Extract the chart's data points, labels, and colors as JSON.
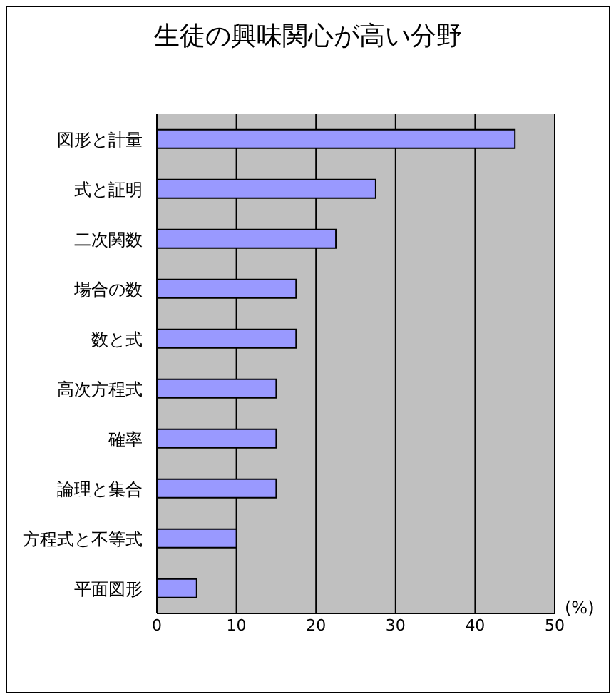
{
  "chart_data": {
    "type": "bar",
    "title": "生徒の興味関心が高い分野",
    "xlabel": "(%)",
    "orientation": "horizontal",
    "categories": [
      "図形と計量",
      "式と証明",
      "二次関数",
      "場合の数",
      "数と式",
      "高次方程式",
      "確率",
      "論理と集合",
      "方程式と不等式",
      "平面図形"
    ],
    "values": [
      45,
      27.5,
      22.5,
      17.5,
      17.5,
      15,
      15,
      15,
      10,
      5
    ],
    "color": "#9999ff",
    "xlim": [
      0,
      50
    ],
    "xticks": [
      0,
      10,
      20,
      30,
      40,
      50
    ],
    "grid": "x"
  }
}
